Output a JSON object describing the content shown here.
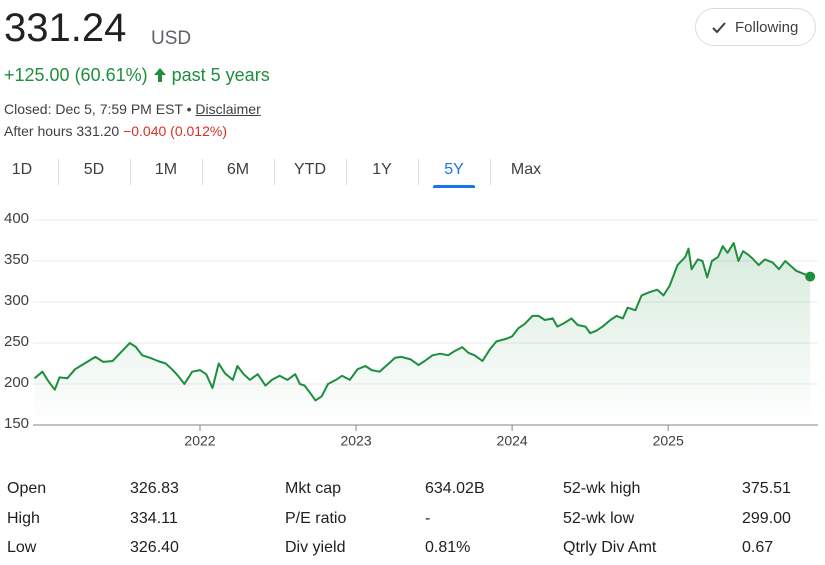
{
  "header": {
    "price": "331.24",
    "currency": "USD",
    "follow_button": "Following",
    "change": "+125.00 (60.61%)",
    "change_period": "past 5 years",
    "closed": "Closed: Dec 5, 7:59 PM EST",
    "closed_separator": "•",
    "disclaimer": "Disclaimer",
    "after_hours": "After hours 331.20",
    "after_hours_change": "−0.040 (0.012%)"
  },
  "tabs": [
    "1D",
    "5D",
    "1M",
    "6M",
    "YTD",
    "1Y",
    "5Y",
    "Max"
  ],
  "selected_tab": 6,
  "chart_data": {
    "type": "line",
    "color": "#1e8e3e",
    "grid": true,
    "xlim": [
      2020.93,
      2025.96
    ],
    "xticks": [
      2022,
      2023,
      2024,
      2025
    ],
    "ylim": [
      150,
      400
    ],
    "yticks": [
      150,
      200,
      250,
      300,
      350,
      400
    ],
    "x": [
      2020.94,
      2020.99,
      2021.03,
      2021.07,
      2021.1,
      2021.15,
      2021.2,
      2021.26,
      2021.33,
      2021.38,
      2021.44,
      2021.49,
      2021.55,
      2021.59,
      2021.63,
      2021.68,
      2021.73,
      2021.78,
      2021.82,
      2021.86,
      2021.9,
      2021.95,
      2022.0,
      2022.04,
      2022.08,
      2022.12,
      2022.16,
      2022.21,
      2022.24,
      2022.28,
      2022.32,
      2022.37,
      2022.42,
      2022.46,
      2022.51,
      2022.56,
      2022.61,
      2022.64,
      2022.67,
      2022.71,
      2022.74,
      2022.78,
      2022.82,
      2022.87,
      2022.91,
      2022.96,
      2023.01,
      2023.06,
      2023.1,
      2023.15,
      2023.21,
      2023.25,
      2023.29,
      2023.35,
      2023.4,
      2023.44,
      2023.49,
      2023.54,
      2023.59,
      2023.63,
      2023.68,
      2023.72,
      2023.76,
      2023.81,
      2023.86,
      2023.9,
      2023.96,
      2024.0,
      2024.04,
      2024.08,
      2024.13,
      2024.17,
      2024.21,
      2024.26,
      2024.29,
      2024.34,
      2024.38,
      2024.42,
      2024.47,
      2024.5,
      2024.54,
      2024.58,
      2024.63,
      2024.67,
      2024.71,
      2024.74,
      2024.79,
      2024.83,
      2024.88,
      2024.93,
      2024.97,
      2025.01,
      2025.06,
      2025.11,
      2025.13,
      2025.15,
      2025.19,
      2025.22,
      2025.25,
      2025.28,
      2025.32,
      2025.35,
      2025.38,
      2025.42,
      2025.45,
      2025.48,
      2025.51,
      2025.54,
      2025.58,
      2025.62,
      2025.67,
      2025.71,
      2025.75,
      2025.78,
      2025.82,
      2025.86,
      2025.91
    ],
    "values": [
      207,
      215,
      203,
      193,
      208,
      207,
      218,
      225,
      233,
      227,
      228,
      238,
      250,
      245,
      235,
      232,
      228,
      225,
      218,
      210,
      200,
      215,
      217,
      212,
      195,
      225,
      213,
      205,
      222,
      212,
      205,
      212,
      198,
      205,
      210,
      205,
      212,
      200,
      198,
      188,
      180,
      185,
      200,
      205,
      210,
      205,
      218,
      222,
      217,
      215,
      225,
      232,
      233,
      230,
      223,
      228,
      235,
      237,
      235,
      240,
      245,
      238,
      235,
      228,
      243,
      252,
      255,
      258,
      268,
      273,
      283,
      283,
      278,
      280,
      270,
      275,
      280,
      272,
      270,
      262,
      265,
      270,
      278,
      283,
      280,
      293,
      290,
      308,
      312,
      315,
      308,
      320,
      345,
      355,
      365,
      340,
      352,
      350,
      330,
      350,
      355,
      368,
      360,
      372,
      350,
      362,
      358,
      353,
      345,
      352,
      348,
      340,
      350,
      345,
      338,
      335,
      331
    ]
  },
  "stats": {
    "rows": [
      [
        "Open",
        "326.83",
        "Mkt cap",
        "634.02B",
        "52-wk high",
        "375.51"
      ],
      [
        "High",
        "334.11",
        "P/E ratio",
        "-",
        "52-wk low",
        "299.00"
      ],
      [
        "Low",
        "326.40",
        "Div yield",
        "0.81%",
        "Qtrly Div Amt",
        "0.67"
      ]
    ]
  }
}
